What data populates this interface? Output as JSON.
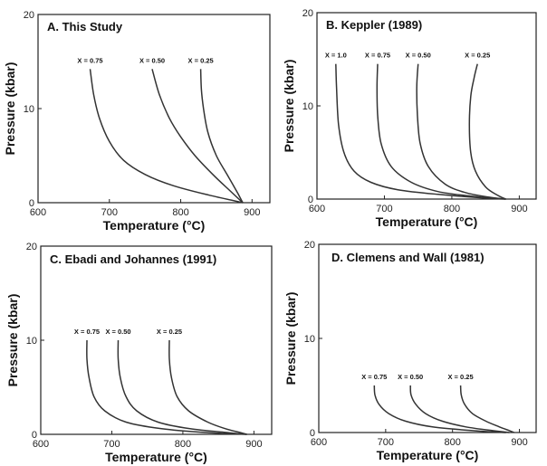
{
  "chart_data": [
    {
      "type": "line",
      "title": "A. This Study",
      "xlabel": "Temperature (°C)",
      "ylabel": "Pressure (kbar)",
      "xlim": [
        600,
        925
      ],
      "ylim": [
        0,
        20
      ],
      "xticks": [
        "600",
        "700",
        "800",
        "900"
      ],
      "yticks": [
        "0",
        "10",
        "20"
      ],
      "series": [
        {
          "name": "X = 0.75",
          "x": [
            673,
            678,
            686,
            700,
            720,
            750,
            790,
            840,
            887
          ],
          "y": [
            14.2,
            11.5,
            9,
            6.5,
            4.5,
            3,
            1.8,
            0.8,
            0
          ]
        },
        {
          "name": "X = 0.50",
          "x": [
            760,
            770,
            784,
            800,
            820,
            845,
            870,
            887
          ],
          "y": [
            14.2,
            11.5,
            9,
            7,
            5,
            3,
            1.2,
            0
          ]
        },
        {
          "name": "X = 0.25",
          "x": [
            828,
            829,
            832,
            838,
            850,
            865,
            880,
            887
          ],
          "y": [
            14.2,
            12,
            10,
            7.5,
            5,
            3,
            1,
            0
          ]
        }
      ]
    },
    {
      "type": "line",
      "title": "B. Keppler (1989)",
      "xlabel": "Temperature (°C)",
      "ylabel": "Pressure (kbar)",
      "xlim": [
        600,
        925
      ],
      "ylim": [
        0,
        20
      ],
      "xticks": [
        "600",
        "700",
        "800",
        "900"
      ],
      "yticks": [
        "0",
        "10",
        "20"
      ],
      "series": [
        {
          "name": "X = 1.0",
          "x": [
            628,
            629,
            632,
            640,
            655,
            680,
            720,
            780,
            850,
            880
          ],
          "y": [
            14.5,
            12,
            8,
            5,
            3,
            1.8,
            1,
            0.5,
            0.1,
            0
          ]
        },
        {
          "name": "X = 0.75",
          "x": [
            690,
            689,
            690,
            695,
            710,
            740,
            780,
            830,
            880
          ],
          "y": [
            14.5,
            12,
            9,
            6,
            3.5,
            1.8,
            0.8,
            0.3,
            0
          ]
        },
        {
          "name": "X = 0.50",
          "x": [
            750,
            748,
            749,
            753,
            765,
            790,
            820,
            855,
            880
          ],
          "y": [
            14.5,
            12,
            9,
            6,
            3.5,
            1.6,
            0.7,
            0.2,
            0
          ]
        },
        {
          "name": "X = 0.25",
          "x": [
            838,
            833,
            828,
            826,
            828,
            835,
            850,
            868,
            880
          ],
          "y": [
            14.5,
            13,
            11,
            8,
            5,
            3,
            1.3,
            0.4,
            0
          ]
        }
      ]
    },
    {
      "type": "line",
      "title": "C. Ebadi and Johannes (1991)",
      "xlabel": "Temperature (°C)",
      "ylabel": "Pressure (kbar)",
      "xlim": [
        600,
        925
      ],
      "ylim": [
        0,
        20
      ],
      "xticks": [
        "600",
        "700",
        "800",
        "900"
      ],
      "yticks": [
        "0",
        "10",
        "20"
      ],
      "series": [
        {
          "name": "X = 0.75",
          "x": [
            665,
            665,
            668,
            675,
            690,
            720,
            770,
            830,
            890
          ],
          "y": [
            10,
            8,
            6,
            4,
            2.5,
            1.3,
            0.6,
            0.2,
            0
          ]
        },
        {
          "name": "X = 0.50",
          "x": [
            709,
            709,
            712,
            720,
            735,
            765,
            810,
            860,
            890
          ],
          "y": [
            10,
            8,
            6,
            4,
            2.5,
            1.3,
            0.6,
            0.2,
            0
          ]
        },
        {
          "name": "X = 0.25",
          "x": [
            781,
            781,
            784,
            792,
            808,
            835,
            860,
            880,
            890
          ],
          "y": [
            10,
            8,
            6,
            4,
            2.5,
            1.3,
            0.6,
            0.2,
            0
          ]
        }
      ]
    },
    {
      "type": "line",
      "title": "D. Clemens and Wall (1981)",
      "xlabel": "Temperature (°C)",
      "ylabel": "Pressure (kbar)",
      "xlim": [
        600,
        925
      ],
      "ylim": [
        0,
        20
      ],
      "xticks": [
        "600",
        "700",
        "800",
        "900"
      ],
      "yticks": [
        "0",
        "10",
        "20"
      ],
      "series": [
        {
          "name": "X = 0.75",
          "x": [
            683,
            684,
            690,
            705,
            730,
            770,
            830,
            880
          ],
          "y": [
            5,
            4,
            3,
            2,
            1.2,
            0.6,
            0.2,
            0
          ]
        },
        {
          "name": "X = 0.50",
          "x": [
            737,
            738,
            745,
            760,
            785,
            820,
            860,
            885
          ],
          "y": [
            5,
            4,
            3,
            2,
            1.2,
            0.6,
            0.2,
            0
          ]
        },
        {
          "name": "X = 0.25",
          "x": [
            812,
            813,
            818,
            830,
            850,
            870,
            885,
            892
          ],
          "y": [
            5,
            4,
            3,
            2,
            1.2,
            0.6,
            0.2,
            0
          ]
        }
      ]
    }
  ]
}
